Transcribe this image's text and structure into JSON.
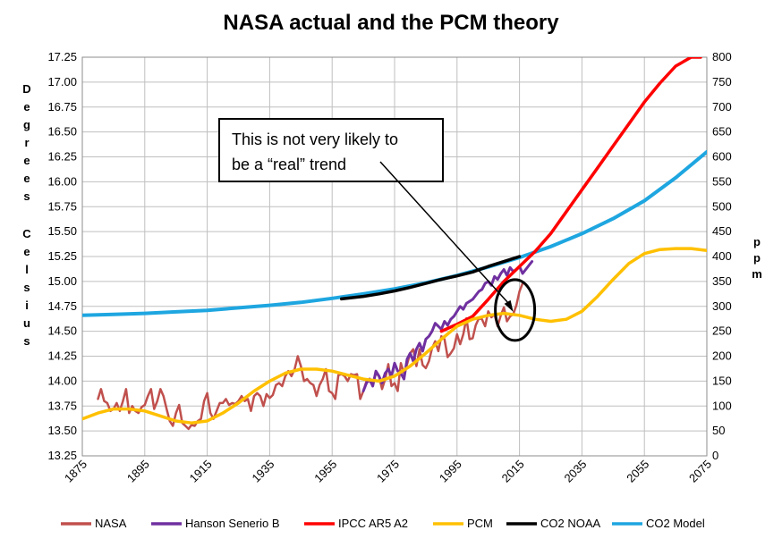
{
  "chart_data": {
    "type": "line",
    "title": "NASA actual and the PCM theory",
    "xlim": [
      1875,
      2075
    ],
    "x_ticks": [
      "1875",
      "1895",
      "1915",
      "1935",
      "1955",
      "1975",
      "1995",
      "2015",
      "2035",
      "2055",
      "2075"
    ],
    "ylim_left": [
      13.25,
      17.25
    ],
    "y_ticks_left": [
      "13.25",
      "13.50",
      "13.75",
      "14.00",
      "14.25",
      "14.50",
      "14.75",
      "15.00",
      "15.25",
      "15.50",
      "15.75",
      "16.00",
      "16.25",
      "16.50",
      "16.75",
      "17.00",
      "17.25"
    ],
    "ylabel_left": "Degrees Celsius",
    "ylim_right": [
      0,
      800
    ],
    "y_ticks_right": [
      "0",
      "50",
      "100",
      "150",
      "200",
      "250",
      "300",
      "350",
      "400",
      "450",
      "500",
      "550",
      "600",
      "650",
      "700",
      "750",
      "800"
    ],
    "ylabel_right": "ppm",
    "grid": true,
    "legend_position": "bottom",
    "annotation": {
      "lines": [
        "This is not very likely to",
        "be a “real” trend"
      ],
      "target": {
        "x": 2013,
        "y": 14.65
      }
    },
    "series": [
      {
        "name": "NASA",
        "color": "#c0504d",
        "axis": "left",
        "x": [
          1880,
          1881,
          1882,
          1883,
          1884,
          1885,
          1886,
          1887,
          1888,
          1889,
          1890,
          1891,
          1892,
          1893,
          1894,
          1895,
          1896,
          1897,
          1898,
          1899,
          1900,
          1901,
          1902,
          1903,
          1904,
          1905,
          1906,
          1907,
          1908,
          1909,
          1910,
          1911,
          1912,
          1913,
          1914,
          1915,
          1916,
          1917,
          1918,
          1919,
          1920,
          1921,
          1922,
          1923,
          1924,
          1925,
          1926,
          1927,
          1928,
          1929,
          1930,
          1931,
          1932,
          1933,
          1934,
          1935,
          1936,
          1937,
          1938,
          1939,
          1940,
          1941,
          1942,
          1943,
          1944,
          1945,
          1946,
          1947,
          1948,
          1949,
          1950,
          1951,
          1952,
          1953,
          1954,
          1955,
          1956,
          1957,
          1958,
          1959,
          1960,
          1961,
          1962,
          1963,
          1964,
          1965,
          1966,
          1967,
          1968,
          1969,
          1970,
          1971,
          1972,
          1973,
          1974,
          1975,
          1976,
          1977,
          1978,
          1979,
          1980,
          1981,
          1982,
          1983,
          1984,
          1985,
          1986,
          1987,
          1988,
          1989,
          1990,
          1991,
          1992,
          1993,
          1994,
          1995,
          1996,
          1997,
          1998,
          1999,
          2000,
          2001,
          2002,
          2003,
          2004,
          2005,
          2006,
          2007,
          2008,
          2009,
          2010,
          2011,
          2012,
          2013,
          2014,
          2015,
          2016
        ],
        "y": [
          13.82,
          13.92,
          13.8,
          13.78,
          13.7,
          13.72,
          13.78,
          13.7,
          13.8,
          13.92,
          13.68,
          13.75,
          13.7,
          13.68,
          13.74,
          13.76,
          13.85,
          13.92,
          13.72,
          13.8,
          13.92,
          13.85,
          13.72,
          13.6,
          13.55,
          13.68,
          13.76,
          13.58,
          13.55,
          13.52,
          13.56,
          13.55,
          13.6,
          13.62,
          13.8,
          13.88,
          13.68,
          13.62,
          13.7,
          13.78,
          13.78,
          13.82,
          13.76,
          13.78,
          13.77,
          13.8,
          13.85,
          13.8,
          13.82,
          13.7,
          13.85,
          13.88,
          13.85,
          13.75,
          13.87,
          13.83,
          13.86,
          13.96,
          13.98,
          13.95,
          14.05,
          14.1,
          14.05,
          14.12,
          14.25,
          14.15,
          14.0,
          14.02,
          13.98,
          13.96,
          13.85,
          13.96,
          14.02,
          14.12,
          13.9,
          13.88,
          13.82,
          14.06,
          14.07,
          14.05,
          14.0,
          14.07,
          14.06,
          14.07,
          13.82,
          13.9,
          14.0,
          14.0,
          13.96,
          14.08,
          14.05,
          13.92,
          14.02,
          14.17,
          13.95,
          13.98,
          13.9,
          14.18,
          14.08,
          14.17,
          14.28,
          14.32,
          14.15,
          14.32,
          14.16,
          14.13,
          14.2,
          14.33,
          14.4,
          14.3,
          14.45,
          14.42,
          14.24,
          14.28,
          14.33,
          14.47,
          14.37,
          14.47,
          14.63,
          14.42,
          14.43,
          14.56,
          14.63,
          14.62,
          14.55,
          14.7,
          14.64,
          14.67,
          14.55,
          14.66,
          14.74,
          14.6,
          14.65,
          14.67,
          14.76,
          14.9,
          14.98
        ]
      },
      {
        "name": "Hanson Senerio B",
        "color": "#7030a0",
        "axis": "left",
        "x": [
          1965,
          1966,
          1967,
          1968,
          1969,
          1970,
          1971,
          1972,
          1973,
          1974,
          1975,
          1976,
          1977,
          1978,
          1979,
          1980,
          1981,
          1982,
          1983,
          1984,
          1985,
          1986,
          1987,
          1988,
          1989,
          1990,
          1991,
          1992,
          1993,
          1994,
          1995,
          1996,
          1997,
          1998,
          1999,
          2000,
          2001,
          2002,
          2003,
          2004,
          2005,
          2006,
          2007,
          2008,
          2009,
          2010,
          2011,
          2012,
          2013,
          2014,
          2015,
          2016,
          2017,
          2018,
          2019
        ],
        "y": [
          13.9,
          13.98,
          14.02,
          13.95,
          14.1,
          14.05,
          13.98,
          14.08,
          14.12,
          14.05,
          14.18,
          14.1,
          14.08,
          14.02,
          14.22,
          14.28,
          14.2,
          14.32,
          14.38,
          14.3,
          14.42,
          14.45,
          14.5,
          14.58,
          14.55,
          14.52,
          14.6,
          14.56,
          14.62,
          14.65,
          14.7,
          14.75,
          14.72,
          14.78,
          14.8,
          14.82,
          14.86,
          14.9,
          14.92,
          14.98,
          15.0,
          14.96,
          15.05,
          15.02,
          15.08,
          15.12,
          15.06,
          15.14,
          15.1,
          15.12,
          15.15,
          15.08,
          15.12,
          15.16,
          15.2
        ]
      },
      {
        "name": "IPCC AR5 A2",
        "color": "#ff0000",
        "axis": "left",
        "x": [
          1990,
          1995,
          2000,
          2005,
          2010,
          2015,
          2020,
          2025,
          2030,
          2035,
          2040,
          2045,
          2050,
          2055,
          2060,
          2065,
          2070,
          2073
        ],
        "y": [
          14.5,
          14.57,
          14.65,
          14.82,
          15.0,
          15.15,
          15.3,
          15.48,
          15.7,
          15.92,
          16.14,
          16.36,
          16.58,
          16.8,
          16.99,
          17.16,
          17.25,
          17.25
        ]
      },
      {
        "name": "PCM",
        "color": "#ffc000",
        "axis": "left",
        "x": [
          1875,
          1880,
          1885,
          1890,
          1895,
          1900,
          1905,
          1910,
          1915,
          1920,
          1925,
          1930,
          1935,
          1940,
          1945,
          1950,
          1955,
          1960,
          1965,
          1970,
          1975,
          1980,
          1985,
          1990,
          1995,
          2000,
          2005,
          2010,
          2015,
          2020,
          2025,
          2030,
          2035,
          2040,
          2045,
          2050,
          2055,
          2060,
          2065,
          2070,
          2075
        ],
        "y": [
          13.62,
          13.68,
          13.72,
          13.72,
          13.7,
          13.65,
          13.6,
          13.58,
          13.6,
          13.68,
          13.78,
          13.9,
          14.0,
          14.08,
          14.12,
          14.12,
          14.1,
          14.06,
          14.02,
          14.0,
          14.05,
          14.15,
          14.28,
          14.42,
          14.55,
          14.62,
          14.66,
          14.68,
          14.66,
          14.62,
          14.6,
          14.62,
          14.7,
          14.85,
          15.02,
          15.18,
          15.28,
          15.32,
          15.33,
          15.33,
          15.31
        ]
      },
      {
        "name": "CO2 NOAA",
        "color": "#000000",
        "axis": "right",
        "x": [
          1958,
          1965,
          1970,
          1975,
          1980,
          1985,
          1990,
          1995,
          2000,
          2005,
          2010,
          2015
        ],
        "y": [
          315,
          320,
          325,
          331,
          338,
          346,
          354,
          361,
          369,
          380,
          390,
          400
        ]
      },
      {
        "name": "CO2 Model",
        "color": "#1ea6e0",
        "axis": "right",
        "x": [
          1875,
          1885,
          1895,
          1905,
          1915,
          1925,
          1935,
          1945,
          1955,
          1965,
          1975,
          1985,
          1995,
          2005,
          2015,
          2025,
          2035,
          2045,
          2055,
          2065,
          2075
        ],
        "y": [
          282,
          284,
          286,
          289,
          292,
          297,
          302,
          308,
          316,
          325,
          335,
          347,
          362,
          379,
          398,
          420,
          446,
          476,
          512,
          558,
          610
        ]
      }
    ]
  }
}
